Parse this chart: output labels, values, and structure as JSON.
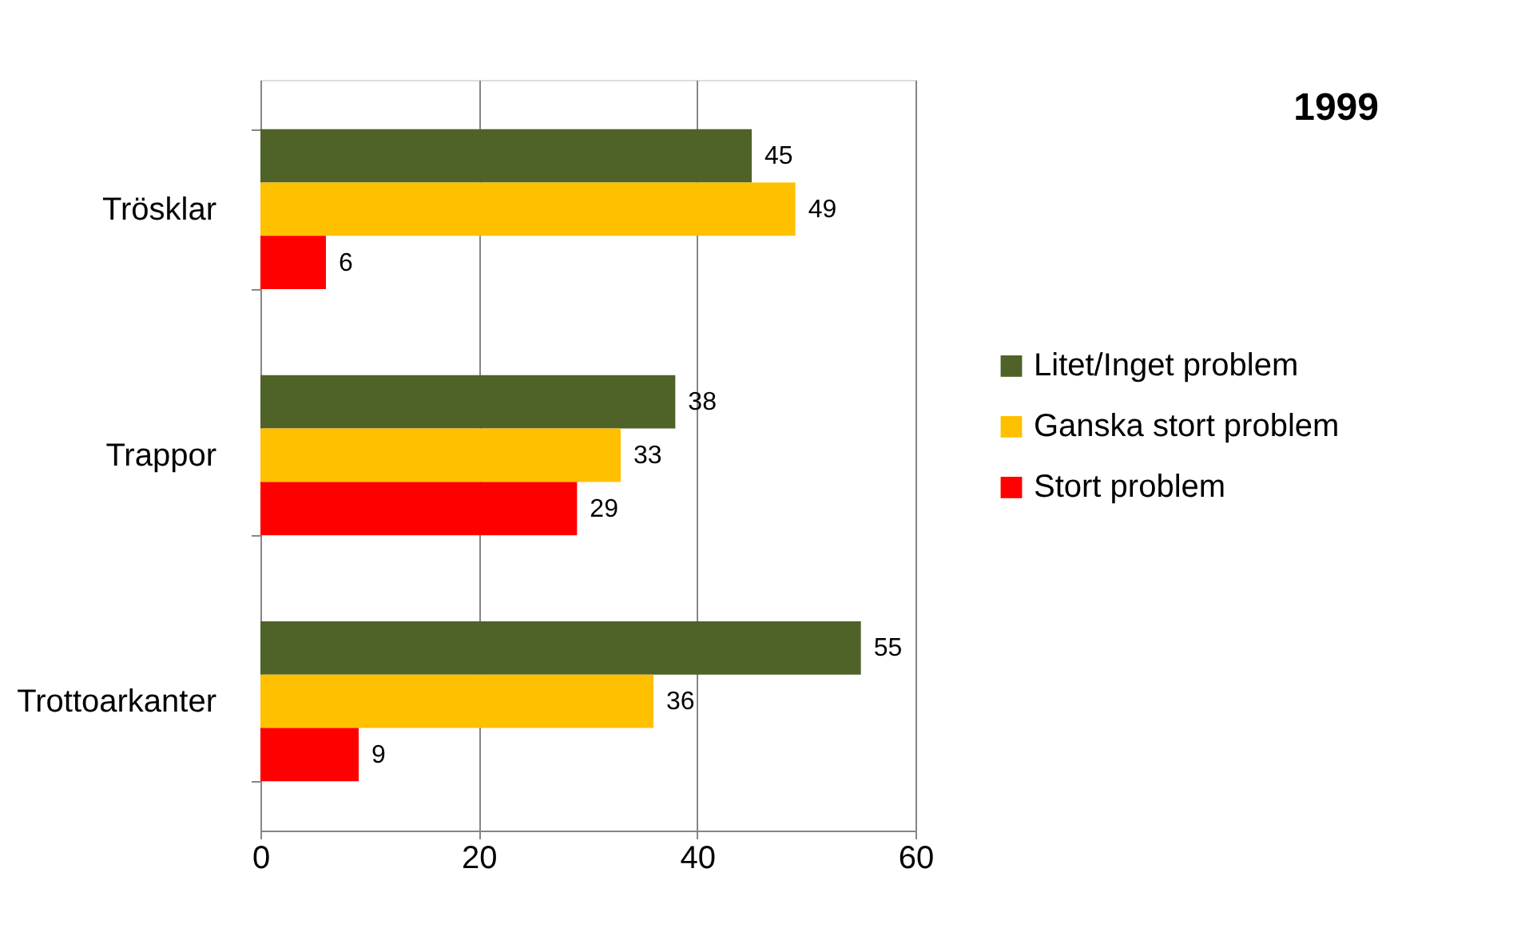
{
  "chart_data": {
    "type": "bar",
    "orientation": "horizontal",
    "title": "1999",
    "categories": [
      "Trösklar",
      "Trappor",
      "Trottoarkanter"
    ],
    "series": [
      {
        "name": "Litet/Inget problem",
        "color": "#4f6228",
        "values": [
          45,
          38,
          55
        ]
      },
      {
        "name": "Ganska stort problem",
        "color": "#ffc000",
        "values": [
          49,
          33,
          36
        ]
      },
      {
        "name": "Stort problem",
        "color": "#ff0000",
        "values": [
          6,
          29,
          9
        ]
      }
    ],
    "xlim": [
      0,
      60
    ],
    "xticks": [
      0,
      20,
      40,
      60
    ],
    "grid": "x",
    "legend": "right",
    "data_labels": true
  }
}
